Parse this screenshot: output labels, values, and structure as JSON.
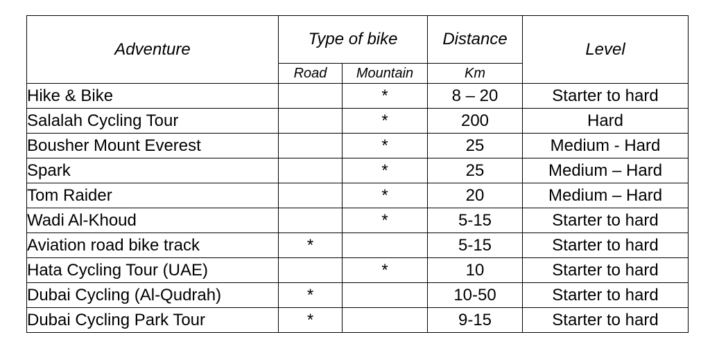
{
  "headers": {
    "adventure": "Adventure",
    "type_of_bike": "Type of bike",
    "distance": "Distance",
    "level": "Level",
    "road": "Road",
    "mountain": "Mountain",
    "km": "Km"
  },
  "rows": [
    {
      "adventure": "Hike & Bike",
      "road": "",
      "mountain": "*",
      "distance": "8 – 20",
      "level": "Starter to hard"
    },
    {
      "adventure": "Salalah Cycling Tour",
      "road": "",
      "mountain": "*",
      "distance": "200",
      "level": "Hard"
    },
    {
      "adventure": "Bousher Mount Everest",
      "road": "",
      "mountain": "*",
      "distance": "25",
      "level": "Medium - Hard"
    },
    {
      "adventure": "Spark",
      "road": "",
      "mountain": "*",
      "distance": "25",
      "level": "Medium – Hard"
    },
    {
      "adventure": "Tom Raider",
      "road": "",
      "mountain": "*",
      "distance": "20",
      "level": "Medium – Hard"
    },
    {
      "adventure": "Wadi Al-Khoud",
      "road": "",
      "mountain": "*",
      "distance": "5-15",
      "level": "Starter to hard"
    },
    {
      "adventure": "Aviation road bike track",
      "road": "*",
      "mountain": "",
      "distance": "5-15",
      "level": "Starter to hard"
    },
    {
      "adventure": "Hata Cycling Tour (UAE)",
      "road": "",
      "mountain": "*",
      "distance": "10",
      "level": "Starter to hard"
    },
    {
      "adventure": "Dubai Cycling (Al-Qudrah)",
      "road": "*",
      "mountain": "",
      "distance": "10-50",
      "level": "Starter to hard"
    },
    {
      "adventure": "Dubai Cycling Park Tour",
      "road": "*",
      "mountain": "",
      "distance": "9-15",
      "level": "Starter to hard"
    }
  ]
}
